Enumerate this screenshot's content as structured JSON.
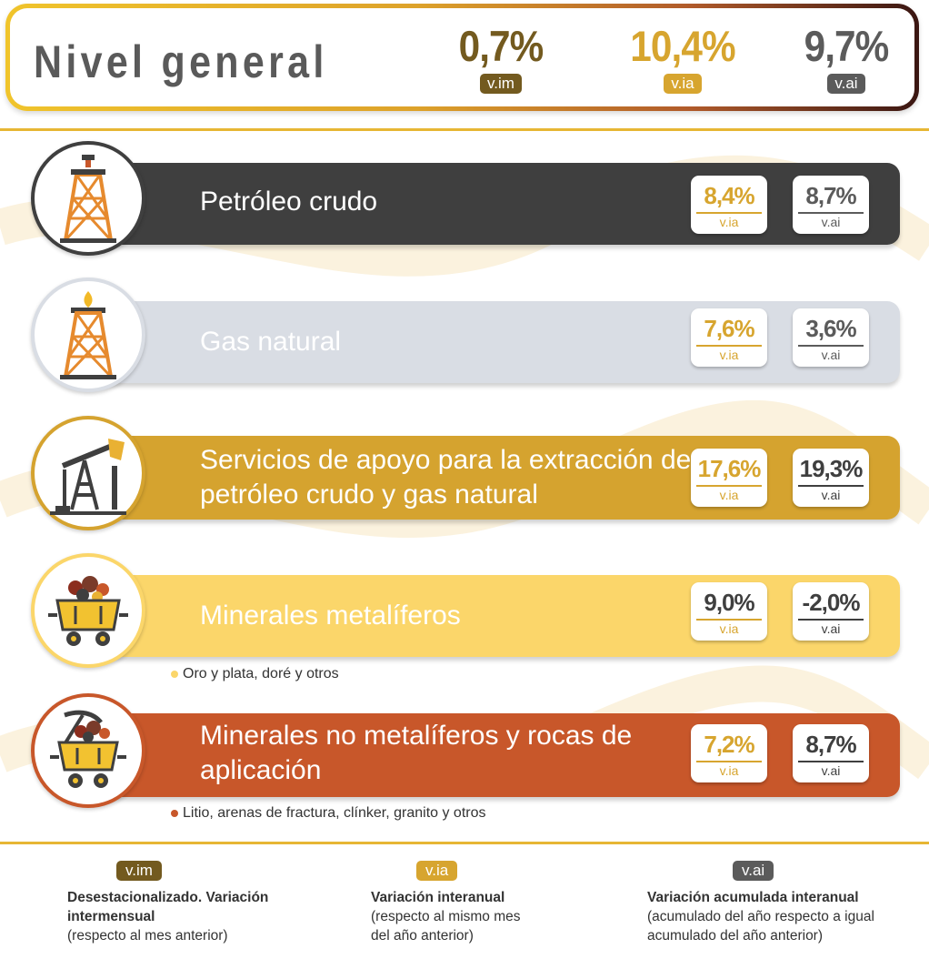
{
  "colors": {
    "dark": "#3f3f3f",
    "vim": "#735a1f",
    "via": "#d7a52f",
    "vai": "#5b5b5b",
    "gas": "#d9dde4",
    "services": "#d5a32f",
    "metal": "#fbd66a",
    "nonmetal": "#c8572a"
  },
  "header": {
    "title": "Nivel general",
    "stats": [
      {
        "value": "0,7%",
        "label": "v.im"
      },
      {
        "value": "10,4%",
        "label": "v.ia"
      },
      {
        "value": "9,7%",
        "label": "v.ai"
      }
    ]
  },
  "rows": [
    {
      "label": "Petróleo crudo",
      "icon": "oil-derrick-icon",
      "via": "8,4%",
      "via_label": "v.ia",
      "vai": "8,7%",
      "vai_label": "v.ai"
    },
    {
      "label": "Gas natural",
      "icon": "gas-derrick-icon",
      "via": "7,6%",
      "via_label": "v.ia",
      "vai": "3,6%",
      "vai_label": "v.ai"
    },
    {
      "label": "Servicios de apoyo para la extracción de petróleo crudo y gas natural",
      "icon": "pumpjack-icon",
      "via": "17,6%",
      "via_label": "v.ia",
      "vai": "19,3%",
      "vai_label": "v.ai"
    },
    {
      "label": "Minerales metalíferos",
      "icon": "mine-cart-icon",
      "via": "9,0%",
      "via_label": "v.ia",
      "vai": "-2,0%",
      "vai_label": "v.ai",
      "note": "Oro y plata, doré y otros"
    },
    {
      "label": "Minerales no metalíferos y rocas de aplicación",
      "icon": "mine-cart-pickaxe-icon",
      "via": "7,2%",
      "via_label": "v.ia",
      "vai": "8,7%",
      "vai_label": "v.ai",
      "note": "Litio, arenas de fractura, clínker, granito y otros"
    }
  ],
  "legend": [
    {
      "badge": "v.im",
      "bold": "Desestacionalizado. Variación intermensual",
      "text": "(respecto al mes anterior)"
    },
    {
      "badge": "v.ia",
      "bold": "Variación interanual",
      "text": "(respecto al mismo mes del año anterior)"
    },
    {
      "badge": "v.ai",
      "bold": "Variación acumulada interanual",
      "text": "(acumulado del año respecto a igual acumulado del año anterior)"
    }
  ]
}
